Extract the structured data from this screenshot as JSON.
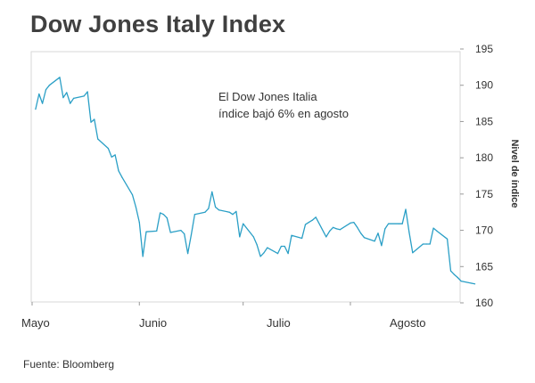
{
  "title": "Dow Jones Italy Index",
  "source": "Fuente: Bloomberg",
  "chart_data": {
    "type": "line",
    "title": "Dow Jones Italy Index",
    "ylabel": "Nivel de índice",
    "xlabel": "",
    "ylim": [
      160,
      195
    ],
    "yticks": [
      160,
      165,
      170,
      175,
      180,
      185,
      190,
      195
    ],
    "month_labels": [
      "Mayo",
      "Junio",
      "Julio",
      "Agosto"
    ],
    "annotation": [
      "El Dow Jones Italia",
      "índice bajó 6% en agosto"
    ],
    "grid": false,
    "line_color": "#2a9fc6",
    "series": [
      {
        "x": [
          "2011-05-02",
          "2011-05-03",
          "2011-05-04",
          "2011-05-05",
          "2011-05-06",
          "2011-05-09",
          "2011-05-10",
          "2011-05-11",
          "2011-05-12",
          "2011-05-13",
          "2011-05-16",
          "2011-05-17",
          "2011-05-18",
          "2011-05-19",
          "2011-05-20",
          "2011-05-23",
          "2011-05-24",
          "2011-05-25",
          "2011-05-26",
          "2011-05-27",
          "2011-05-30",
          "2011-05-31",
          "2011-06-01",
          "2011-06-02",
          "2011-06-03",
          "2011-06-06",
          "2011-06-07",
          "2011-06-08",
          "2011-06-09",
          "2011-06-10",
          "2011-06-13",
          "2011-06-14",
          "2011-06-15",
          "2011-06-16",
          "2011-06-17",
          "2011-06-20",
          "2011-06-21",
          "2011-06-22",
          "2011-06-23",
          "2011-06-24",
          "2011-06-27",
          "2011-06-28",
          "2011-06-29",
          "2011-06-30",
          "2011-07-01",
          "2011-07-04",
          "2011-07-05",
          "2011-07-06",
          "2011-07-07",
          "2011-07-08",
          "2011-07-11",
          "2011-07-12",
          "2011-07-13",
          "2011-07-14",
          "2011-07-15",
          "2011-07-18",
          "2011-07-19",
          "2011-07-20",
          "2011-07-21",
          "2011-07-22",
          "2011-07-25",
          "2011-07-26",
          "2011-07-27",
          "2011-07-28",
          "2011-07-29",
          "2011-08-01",
          "2011-08-02",
          "2011-08-03",
          "2011-08-04",
          "2011-08-05",
          "2011-08-08",
          "2011-08-09",
          "2011-08-10",
          "2011-08-11",
          "2011-08-12",
          "2011-08-15",
          "2011-08-16",
          "2011-08-17",
          "2011-08-18",
          "2011-08-19",
          "2011-08-22",
          "2011-08-23",
          "2011-08-24",
          "2011-08-25",
          "2011-08-26",
          "2011-08-29",
          "2011-08-30",
          "2011-08-31",
          "2011-09-01",
          "2011-09-02",
          "2011-09-05",
          "2011-09-06"
        ],
        "values": [
          186.7,
          188.8,
          187.5,
          189.4,
          190.0,
          191.1,
          188.3,
          189.0,
          187.5,
          188.2,
          188.5,
          189.1,
          184.9,
          185.3,
          182.6,
          181.3,
          180.1,
          180.4,
          178.2,
          177.3,
          174.9,
          173.2,
          171.1,
          166.4,
          169.8,
          169.9,
          172.4,
          172.2,
          171.7,
          169.7,
          170.0,
          169.5,
          166.8,
          169.4,
          172.2,
          172.5,
          173.0,
          175.3,
          173.2,
          172.8,
          172.5,
          172.2,
          172.6,
          169.1,
          170.9,
          169.1,
          168.0,
          166.4,
          166.9,
          167.6,
          166.8,
          167.8,
          167.8,
          166.8,
          169.3,
          168.9,
          170.8,
          171.1,
          171.4,
          171.8,
          169.1,
          169.9,
          170.4,
          170.2,
          170.1,
          171.0,
          171.1,
          170.4,
          169.6,
          169.0,
          168.5,
          169.6,
          167.9,
          170.2,
          170.9,
          170.9,
          170.9,
          172.9,
          169.7,
          166.9,
          168.1,
          168.1,
          168.1,
          170.3,
          169.9,
          168.8,
          164.4,
          163.9,
          163.5,
          163.0,
          162.7,
          162.6
        ]
      }
    ]
  }
}
